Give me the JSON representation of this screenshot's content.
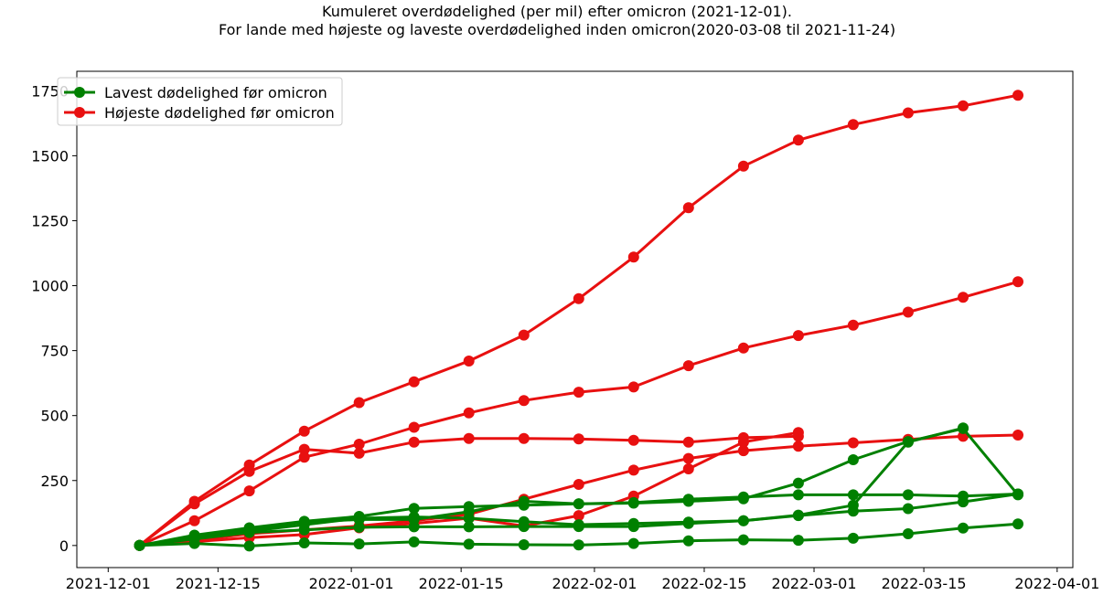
{
  "chart_data": {
    "type": "line",
    "title": "Kumuleret overdødelighed (per mil) efter omicron (2021-12-01).",
    "subtitle": "For lande med højeste og laveste overdødelighed inden omicron(2020-03-08 til 2021-11-24)",
    "xlabel": "",
    "ylabel": "",
    "x_ticks": [
      "2021-12-01",
      "2021-12-15",
      "2022-01-01",
      "2022-01-15",
      "2022-02-01",
      "2022-02-15",
      "2022-03-01",
      "2022-03-15",
      "2022-04-01"
    ],
    "y_ticks": [
      0,
      250,
      500,
      750,
      1000,
      1250,
      1500,
      1750
    ],
    "xlim": [
      "2021-11-27",
      "2022-04-03"
    ],
    "ylim": [
      -85,
      1825
    ],
    "grid": false,
    "legend_position": "top-left",
    "colors": {
      "low": "#008000",
      "high": "#e81010"
    },
    "legend": [
      {
        "label": "Lavest dødelighed før omicron",
        "group": "low"
      },
      {
        "label": "Højeste dødelighed før omicron",
        "group": "high"
      }
    ],
    "series": [
      {
        "group": "high",
        "x": [
          "2021-12-05",
          "2021-12-12",
          "2021-12-19",
          "2021-12-26",
          "2022-01-02",
          "2022-01-09",
          "2022-01-16",
          "2022-01-23",
          "2022-01-30",
          "2022-02-06",
          "2022-02-13",
          "2022-02-20",
          "2022-02-27",
          "2022-03-06",
          "2022-03-13",
          "2022-03-20",
          "2022-03-27"
        ],
        "y": [
          0,
          170,
          310,
          440,
          550,
          630,
          710,
          810,
          950,
          1110,
          1300,
          1460,
          1560,
          1620,
          1665,
          1692,
          1733
        ]
      },
      {
        "group": "high",
        "x": [
          "2021-12-05",
          "2021-12-12",
          "2021-12-19",
          "2021-12-26",
          "2022-01-02",
          "2022-01-09",
          "2022-01-16",
          "2022-01-23",
          "2022-01-30",
          "2022-02-06",
          "2022-02-13",
          "2022-02-20",
          "2022-02-27",
          "2022-03-06",
          "2022-03-13",
          "2022-03-20",
          "2022-03-27"
        ],
        "y": [
          0,
          95,
          210,
          340,
          390,
          455,
          510,
          558,
          590,
          610,
          692,
          760,
          808,
          848,
          898,
          955,
          1015
        ]
      },
      {
        "group": "high",
        "x": [
          "2021-12-05",
          "2021-12-12",
          "2021-12-19",
          "2021-12-26",
          "2022-01-02",
          "2022-01-09",
          "2022-01-16",
          "2022-01-23",
          "2022-01-30",
          "2022-02-06",
          "2022-02-13",
          "2022-02-20",
          "2022-02-27"
        ],
        "y": [
          0,
          160,
          285,
          370,
          355,
          398,
          412,
          412,
          410,
          405,
          398,
          415,
          420
        ]
      },
      {
        "group": "high",
        "x": [
          "2021-12-05",
          "2021-12-12",
          "2021-12-19",
          "2021-12-26",
          "2022-01-02",
          "2022-01-09",
          "2022-01-16",
          "2022-01-23",
          "2022-01-30",
          "2022-02-06",
          "2022-02-13",
          "2022-02-20",
          "2022-02-27",
          "2022-03-06",
          "2022-03-13",
          "2022-03-20",
          "2022-03-27"
        ],
        "y": [
          0,
          20,
          45,
          60,
          75,
          95,
          120,
          178,
          235,
          290,
          335,
          365,
          382,
          395,
          408,
          420,
          425
        ]
      },
      {
        "group": "high",
        "x": [
          "2021-12-05",
          "2021-12-12",
          "2021-12-19",
          "2021-12-26",
          "2022-01-02",
          "2022-01-09",
          "2022-01-16",
          "2022-01-23",
          "2022-01-30",
          "2022-02-06",
          "2022-02-13",
          "2022-02-20",
          "2022-02-27"
        ],
        "y": [
          0,
          15,
          30,
          42,
          68,
          85,
          105,
          75,
          115,
          190,
          295,
          398,
          435
        ]
      },
      {
        "group": "low",
        "x": [
          "2021-12-05",
          "2021-12-12",
          "2021-12-19",
          "2021-12-26",
          "2022-01-02",
          "2022-01-09",
          "2022-01-16",
          "2022-01-23",
          "2022-01-30",
          "2022-02-06",
          "2022-02-13",
          "2022-02-20",
          "2022-02-27",
          "2022-03-06",
          "2022-03-13",
          "2022-03-20"
        ],
        "y": [
          0,
          35,
          55,
          80,
          105,
          110,
          105,
          92,
          80,
          85,
          90,
          95,
          117,
          155,
          398,
          452
        ]
      },
      {
        "group": "low",
        "x": [
          "2021-12-05",
          "2021-12-12",
          "2021-12-19",
          "2021-12-26",
          "2022-01-02",
          "2022-01-09",
          "2022-01-16",
          "2022-01-23",
          "2022-01-30",
          "2022-02-06",
          "2022-02-13",
          "2022-02-20",
          "2022-02-27",
          "2022-03-06",
          "2022-03-13",
          "2022-03-20",
          "2022-03-27"
        ],
        "y": [
          0,
          40,
          68,
          93,
          112,
          143,
          150,
          155,
          160,
          163,
          170,
          180,
          240,
          330,
          400,
          450,
          195
        ]
      },
      {
        "group": "low",
        "x": [
          "2021-12-05",
          "2021-12-12",
          "2021-12-19",
          "2021-12-26",
          "2022-01-02",
          "2022-01-09",
          "2022-01-16",
          "2022-01-23",
          "2022-01-30",
          "2022-02-06",
          "2022-02-13",
          "2022-02-20",
          "2022-02-27",
          "2022-03-06",
          "2022-03-13",
          "2022-03-20",
          "2022-03-27"
        ],
        "y": [
          0,
          30,
          62,
          90,
          100,
          100,
          130,
          170,
          160,
          165,
          178,
          187,
          195,
          195,
          195,
          190,
          198
        ]
      },
      {
        "group": "low",
        "x": [
          "2021-12-05",
          "2021-12-12",
          "2021-12-19",
          "2021-12-26",
          "2022-01-02",
          "2022-01-09",
          "2022-01-16",
          "2022-01-23",
          "2022-01-30",
          "2022-02-06",
          "2022-02-13",
          "2022-02-20",
          "2022-02-27",
          "2022-03-06",
          "2022-03-13",
          "2022-03-20",
          "2022-03-27"
        ],
        "y": [
          0,
          25,
          50,
          60,
          70,
          72,
          72,
          73,
          73,
          73,
          85,
          95,
          115,
          132,
          142,
          168,
          198
        ]
      },
      {
        "group": "low",
        "x": [
          "2021-12-05",
          "2021-12-12",
          "2021-12-19",
          "2021-12-26",
          "2022-01-02",
          "2022-01-09",
          "2022-01-16",
          "2022-01-23",
          "2022-01-30",
          "2022-02-06",
          "2022-02-13",
          "2022-02-20",
          "2022-02-27",
          "2022-03-06",
          "2022-03-13",
          "2022-03-20",
          "2022-03-27"
        ],
        "y": [
          0,
          8,
          -2,
          10,
          6,
          14,
          5,
          3,
          2,
          8,
          18,
          22,
          20,
          28,
          45,
          67,
          83
        ]
      }
    ]
  }
}
